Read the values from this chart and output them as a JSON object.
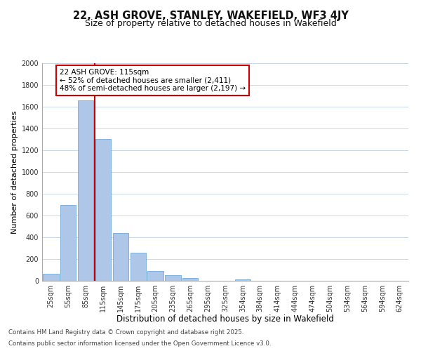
{
  "title": "22, ASH GROVE, STANLEY, WAKEFIELD, WF3 4JY",
  "subtitle": "Size of property relative to detached houses in Wakefield",
  "xlabel": "Distribution of detached houses by size in Wakefield",
  "ylabel": "Number of detached properties",
  "categories": [
    "25sqm",
    "55sqm",
    "85sqm",
    "115sqm",
    "145sqm",
    "175sqm",
    "205sqm",
    "235sqm",
    "265sqm",
    "295sqm",
    "325sqm",
    "354sqm",
    "384sqm",
    "414sqm",
    "444sqm",
    "474sqm",
    "504sqm",
    "534sqm",
    "564sqm",
    "594sqm",
    "624sqm"
  ],
  "values": [
    65,
    695,
    1655,
    1305,
    440,
    255,
    88,
    52,
    28,
    0,
    0,
    10,
    0,
    0,
    0,
    0,
    0,
    0,
    0,
    0,
    0
  ],
  "bar_color": "#aec6e8",
  "bar_edge_color": "#5a9fd4",
  "vline_index": 3,
  "vline_color": "#cc0000",
  "annotation_line1": "22 ASH GROVE: 115sqm",
  "annotation_line2": "← 52% of detached houses are smaller (2,411)",
  "annotation_line3": "48% of semi-detached houses are larger (2,197) →",
  "annotation_box_color": "#ffffff",
  "annotation_border_color": "#cc0000",
  "ylim": [
    0,
    2000
  ],
  "yticks": [
    0,
    200,
    400,
    600,
    800,
    1000,
    1200,
    1400,
    1600,
    1800,
    2000
  ],
  "bg_color": "#ffffff",
  "grid_color": "#c8d8ea",
  "footnote1": "Contains HM Land Registry data © Crown copyright and database right 2025.",
  "footnote2": "Contains public sector information licensed under the Open Government Licence v3.0.",
  "title_fontsize": 10.5,
  "subtitle_fontsize": 9,
  "xlabel_fontsize": 8.5,
  "ylabel_fontsize": 8,
  "tick_fontsize": 7,
  "annotation_fontsize": 7.5,
  "footnote_fontsize": 6.2
}
